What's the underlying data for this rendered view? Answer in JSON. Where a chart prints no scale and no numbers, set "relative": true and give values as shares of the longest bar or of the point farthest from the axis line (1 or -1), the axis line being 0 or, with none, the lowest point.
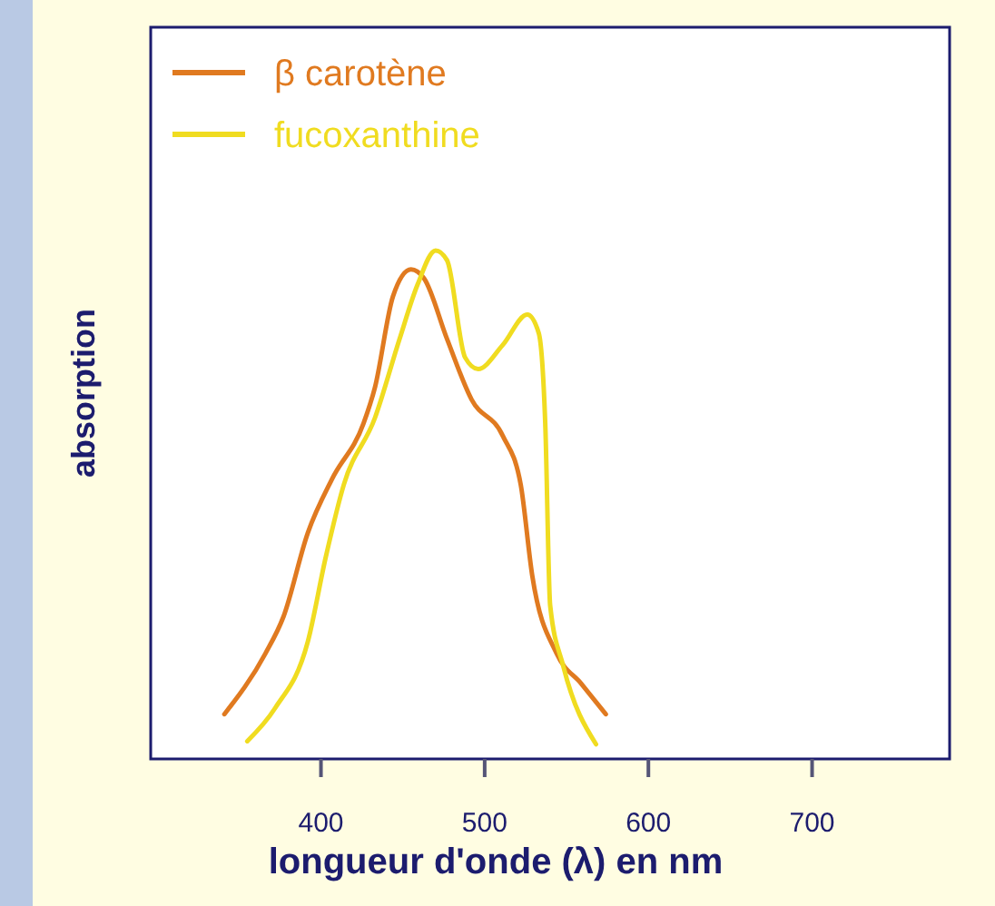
{
  "chart_data": {
    "type": "line",
    "relative": true,
    "xlabel": "longueur d'onde (λ) en nm",
    "ylabel": "absorption",
    "xlim": [
      296,
      784
    ],
    "xticks": [
      400,
      500,
      600,
      700
    ],
    "legend": "top left",
    "grid": false,
    "series": [
      {
        "name": "β carotène",
        "color": "#e07a20",
        "x": [
          341,
          366,
          377,
          392,
          407,
          426,
          433,
          444,
          455,
          463,
          477,
          492,
          511,
          522,
          529,
          544,
          559,
          574
        ],
        "values": [
          0.088,
          0.207,
          0.279,
          0.445,
          0.552,
          0.66,
          0.731,
          0.91,
          0.963,
          0.945,
          0.826,
          0.707,
          0.636,
          0.54,
          0.362,
          0.207,
          0.148,
          0.088
        ]
      },
      {
        "name": "fucoxanthine",
        "color": "#f0dc20",
        "x": [
          355,
          372,
          392,
          403,
          414,
          433,
          448,
          459,
          470,
          477,
          488,
          496,
          511,
          526,
          533,
          537,
          540,
          548,
          568
        ],
        "values": [
          0.035,
          0.1,
          0.231,
          0.398,
          0.54,
          0.671,
          0.826,
          0.933,
          1,
          0.981,
          0.79,
          0.767,
          0.814,
          0.874,
          0.838,
          0.66,
          0.302,
          0.183,
          0.029
        ]
      }
    ]
  }
}
